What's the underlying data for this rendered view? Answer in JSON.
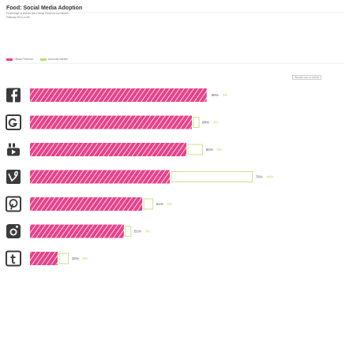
{
  "header": {
    "title": "Food: Social Media Adoption",
    "line1": "Percentage of Brands with Official Presence by Platform",
    "line2": "February 2014, n=80"
  },
  "note": "*Brands were in 2/2013",
  "colors": {
    "primary": "#e8418a",
    "secondary": "#b8e06a",
    "hatch": "#ffffff"
  },
  "chart_data": {
    "type": "bar",
    "orientation": "horizontal",
    "categories": [
      "facebook-icon",
      "google-plus-icon",
      "youtube-icon",
      "vine-icon",
      "pinterest-icon",
      "instagram-icon",
      "tumblr-icon"
    ],
    "series": [
      {
        "name": "Official Presence",
        "values": [
          96,
          88,
          85,
          76,
          61,
          51,
          15
        ]
      },
      {
        "name": "Accounts Inactive",
        "values": [
          0,
          3,
          8,
          44,
          5,
          3,
          5
        ]
      }
    ],
    "value_labels": [
      [
        "96%",
        "0%"
      ],
      [
        "88%",
        "3%"
      ],
      [
        "85%",
        "8%"
      ],
      [
        "76%",
        "44%"
      ],
      [
        "61%",
        "5%"
      ],
      [
        "51%",
        "3%"
      ],
      [
        "15%",
        "5%"
      ]
    ],
    "legend": [
      "Official Presence",
      "Accounts Inactive"
    ],
    "xlim": [
      0,
      100
    ]
  }
}
